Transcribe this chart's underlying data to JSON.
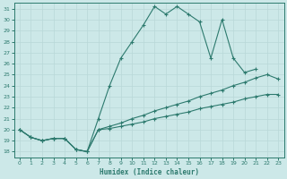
{
  "xlabel": "Humidex (Indice chaleur)",
  "bg_color": "#cce8e8",
  "line_color": "#2d7a6e",
  "grid_color": "#b8d8d8",
  "xlim": [
    -0.5,
    23.5
  ],
  "ylim": [
    17.5,
    31.5
  ],
  "xticks": [
    0,
    1,
    2,
    3,
    4,
    5,
    6,
    7,
    8,
    9,
    10,
    11,
    12,
    13,
    14,
    15,
    16,
    17,
    18,
    19,
    20,
    21,
    22,
    23
  ],
  "yticks": [
    18,
    19,
    20,
    21,
    22,
    23,
    24,
    25,
    26,
    27,
    28,
    29,
    30,
    31
  ],
  "lines": [
    {
      "x": [
        0,
        1,
        2,
        3,
        4,
        5,
        6,
        7,
        8,
        9,
        10,
        11,
        12,
        13,
        14,
        15,
        16,
        17,
        18,
        19,
        20,
        21
      ],
      "y": [
        20,
        19.3,
        19,
        19.2,
        19.2,
        18.2,
        18.0,
        21.0,
        24.0,
        26.5,
        28.0,
        29.5,
        31.2,
        30.5,
        31.2,
        30.5,
        29.8,
        26.5,
        30.0,
        26.5,
        25.2,
        25.5
      ]
    },
    {
      "x": [
        0,
        1,
        2,
        3,
        4,
        5,
        6,
        7,
        8,
        9,
        10,
        11,
        12,
        13,
        14,
        15,
        16,
        17,
        18,
        19,
        20,
        21,
        22,
        23
      ],
      "y": [
        20.0,
        19.3,
        19.0,
        19.2,
        19.2,
        18.2,
        18.0,
        20.0,
        20.3,
        20.6,
        21.0,
        21.3,
        21.7,
        22.0,
        22.3,
        22.6,
        23.0,
        23.3,
        23.6,
        24.0,
        24.3,
        24.7,
        25.0,
        24.6
      ]
    },
    {
      "x": [
        0,
        1,
        2,
        3,
        4,
        5,
        6,
        7,
        8,
        9,
        10,
        11,
        12,
        13,
        14,
        15,
        16,
        17,
        18,
        19,
        20,
        21,
        22,
        23
      ],
      "y": [
        20.0,
        19.3,
        19.0,
        19.2,
        19.2,
        18.2,
        18.0,
        20.0,
        20.1,
        20.3,
        20.5,
        20.7,
        21.0,
        21.2,
        21.4,
        21.6,
        21.9,
        22.1,
        22.3,
        22.5,
        22.8,
        23.0,
        23.2,
        23.2
      ]
    }
  ]
}
